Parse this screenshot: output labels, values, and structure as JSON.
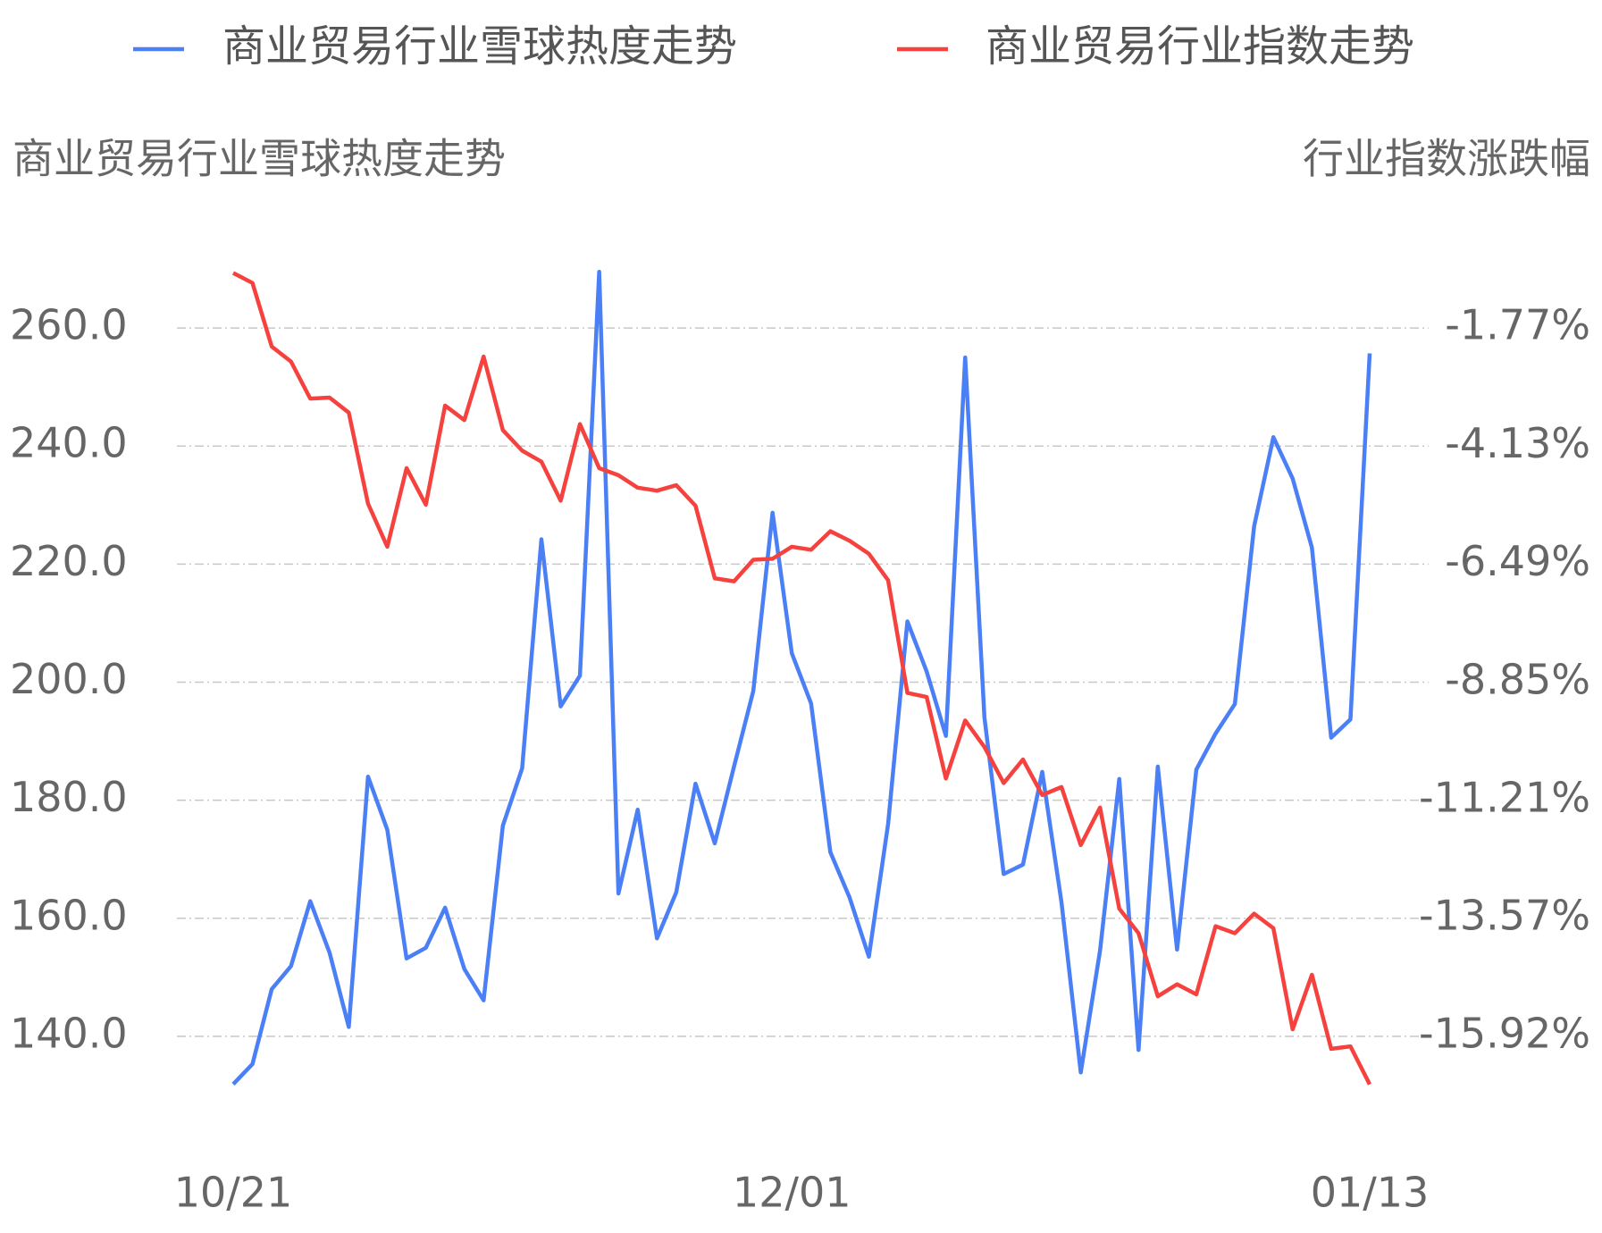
{
  "chart_data": {
    "type": "line",
    "y_label": "商业贸易行业雪球热度走势",
    "y2_label": "行业指数涨跌幅",
    "categories": [
      "10/21",
      null,
      null,
      null,
      null,
      null,
      null,
      null,
      null,
      null,
      null,
      null,
      null,
      null,
      null,
      null,
      null,
      null,
      null,
      null,
      null,
      null,
      null,
      null,
      null,
      null,
      null,
      null,
      null,
      "12/01",
      null,
      null,
      null,
      null,
      null,
      null,
      null,
      null,
      null,
      null,
      null,
      null,
      null,
      null,
      null,
      null,
      null,
      null,
      null,
      null,
      null,
      null,
      null,
      null,
      null,
      null,
      null,
      null,
      null,
      "01/13"
    ],
    "series": [
      {
        "name": "商业贸易行业雪球热度走势",
        "color": "#4a7ff5",
        "axis": "y",
        "values": [
          131.9,
          135.3,
          148.0,
          151.9,
          162.9,
          154.2,
          141.6,
          184.0,
          175.0,
          153.2,
          155.0,
          161.8,
          151.4,
          146.1,
          175.7,
          185.4,
          224.2,
          195.9,
          201.1,
          269.5,
          164.2,
          178.4,
          156.6,
          164.4,
          182.8,
          172.7,
          185.7,
          198.5,
          228.7,
          204.9,
          196.4,
          171.2,
          163.5,
          153.5,
          176.0,
          210.3,
          201.8,
          190.9,
          255.0,
          194.0,
          167.5,
          169.1,
          184.8,
          162.7,
          133.9,
          154.5,
          183.6,
          137.7,
          185.7,
          154.7,
          185.2,
          191.3,
          196.3,
          226.4,
          241.5,
          234.5,
          222.8,
          190.6,
          193.7,
          255.7
        ]
      },
      {
        "name": "商业贸易行业指数走势",
        "color": "#f5423f",
        "axis": "y2",
        "values": [
          -0.67,
          -0.87,
          -2.14,
          -2.44,
          -3.18,
          -3.16,
          -3.46,
          -5.28,
          -6.14,
          -4.57,
          -5.3,
          -3.32,
          -3.61,
          -2.34,
          -3.81,
          -4.22,
          -4.44,
          -5.22,
          -3.69,
          -4.57,
          -4.71,
          -4.96,
          -5.02,
          -4.91,
          -5.32,
          -6.77,
          -6.83,
          -6.4,
          -6.38,
          -6.14,
          -6.2,
          -5.83,
          -6.02,
          -6.28,
          -6.81,
          -9.06,
          -9.14,
          -10.77,
          -9.61,
          -10.14,
          -10.86,
          -10.39,
          -11.1,
          -10.94,
          -12.1,
          -11.35,
          -13.37,
          -13.86,
          -15.12,
          -14.88,
          -15.08,
          -13.72,
          -13.86,
          -13.47,
          -13.76,
          -15.78,
          -14.69,
          -16.17,
          -16.12,
          -16.88
        ]
      }
    ],
    "ylim": [
      130,
      270
    ],
    "yticks": [
      {
        "value": 140,
        "label": "140.0"
      },
      {
        "value": 160,
        "label": "160.0"
      },
      {
        "value": 180,
        "label": "180.0"
      },
      {
        "value": 200,
        "label": "200.0"
      },
      {
        "value": 220,
        "label": "220.0"
      },
      {
        "value": 240,
        "label": "240.0"
      },
      {
        "value": 260,
        "label": "260.0"
      }
    ],
    "y2lim": [
      -17.1,
      -0.59
    ],
    "y2ticks": [
      {
        "value": -15.92,
        "label": "-15.92%"
      },
      {
        "value": -13.57,
        "label": "-13.57%"
      },
      {
        "value": -11.21,
        "label": "-11.21%"
      },
      {
        "value": -8.85,
        "label": "-8.85%"
      },
      {
        "value": -6.49,
        "label": "-6.49%"
      },
      {
        "value": -4.13,
        "label": "-4.13%"
      },
      {
        "value": -1.77,
        "label": "-1.77%"
      }
    ],
    "grid": true
  }
}
